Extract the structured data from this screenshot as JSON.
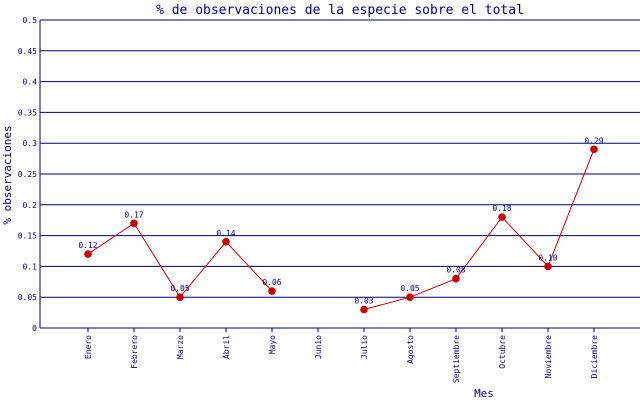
{
  "chart_data": {
    "type": "line",
    "title": "% de observaciones de la especie sobre el total",
    "xlabel": "Mes",
    "ylabel": "% observaciones",
    "categories": [
      "Enero",
      "Febrero",
      "Marzo",
      "Abril",
      "Mayo",
      "Junio",
      "Julio",
      "Agosto",
      "Septiembre",
      "Octubre",
      "Noviembre",
      "Diciembre"
    ],
    "series": [
      {
        "values": [
          0.12,
          0.17,
          0.05,
          0.14,
          0.06,
          null,
          0.03,
          0.05,
          0.08,
          0.18,
          0.1,
          0.29
        ],
        "labels": [
          "0.12",
          "0.17",
          "0.05",
          "0.14",
          "0.06",
          "",
          "0.03",
          "0.05",
          "0.08",
          "0.18",
          "0.10",
          "0.29"
        ]
      }
    ],
    "ylim": [
      0,
      0.5
    ],
    "yticks": [
      "0",
      "0.05",
      "0.1",
      "0.15",
      "0.2",
      "0.25",
      "0.3",
      "0.35",
      "0.4",
      "0.45",
      "0.5"
    ],
    "grid": true,
    "colors": {
      "line": "#cc0000",
      "marker": "#cc0000",
      "grid": "#000080",
      "text": "#000080"
    }
  }
}
